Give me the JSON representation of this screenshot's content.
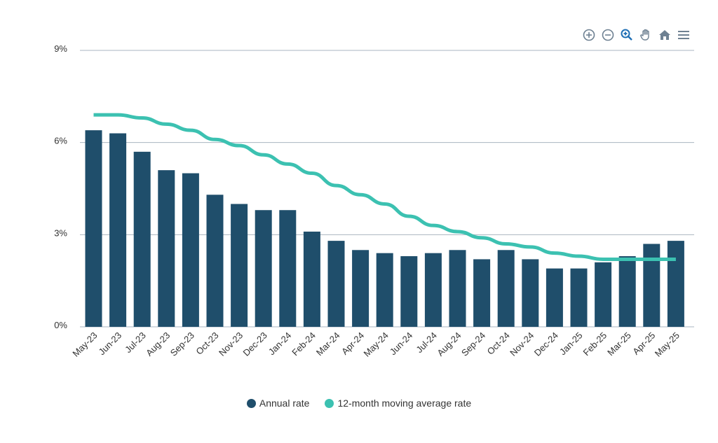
{
  "toolbar": {
    "icons": [
      "zoom-in-icon",
      "zoom-out-icon",
      "selection-zoom-icon",
      "pan-hand-icon",
      "home-reset-icon",
      "menu-icon"
    ]
  },
  "colors": {
    "bar": "#1f4e6b",
    "line": "#3cc1b1",
    "grid": "#a9b5c0",
    "icon": "#6e8192",
    "icon_active": "#1f6fb5"
  },
  "legend": {
    "annual_label": "Annual rate",
    "moving_label": "12-month moving average rate"
  },
  "chart_data": {
    "type": "bar",
    "categories": [
      "May-23",
      "Jun-23",
      "Jul-23",
      "Aug-23",
      "Sep-23",
      "Oct-23",
      "Nov-23",
      "Dec-23",
      "Jan-24",
      "Feb-24",
      "Mar-24",
      "Apr-24",
      "May-24",
      "Jun-24",
      "Jul-24",
      "Aug-24",
      "Sep-24",
      "Oct-24",
      "Nov-24",
      "Dec-24",
      "Jan-25",
      "Feb-25",
      "Mar-25",
      "Apr-25",
      "May-25"
    ],
    "series": [
      {
        "name": "Annual rate",
        "type": "bar",
        "values": [
          6.4,
          6.3,
          5.7,
          5.1,
          5.0,
          4.3,
          4.0,
          3.8,
          3.8,
          3.1,
          2.8,
          2.5,
          2.4,
          2.3,
          2.4,
          2.5,
          2.2,
          2.5,
          2.2,
          1.9,
          1.9,
          2.1,
          2.3,
          2.7,
          2.8
        ]
      },
      {
        "name": "12-month moving average rate",
        "type": "line",
        "values": [
          6.9,
          6.9,
          6.8,
          6.6,
          6.4,
          6.1,
          5.9,
          5.6,
          5.3,
          5.0,
          4.6,
          4.3,
          4.0,
          3.6,
          3.3,
          3.1,
          2.9,
          2.7,
          2.6,
          2.4,
          2.3,
          2.2,
          2.2,
          2.2,
          2.2
        ]
      }
    ],
    "yticks": [
      "0%",
      "3%",
      "6%",
      "9%"
    ],
    "ytick_values": [
      0,
      3,
      6,
      9
    ],
    "ylim": [
      0,
      9
    ],
    "grid": true,
    "legend_position": "bottom-center"
  }
}
